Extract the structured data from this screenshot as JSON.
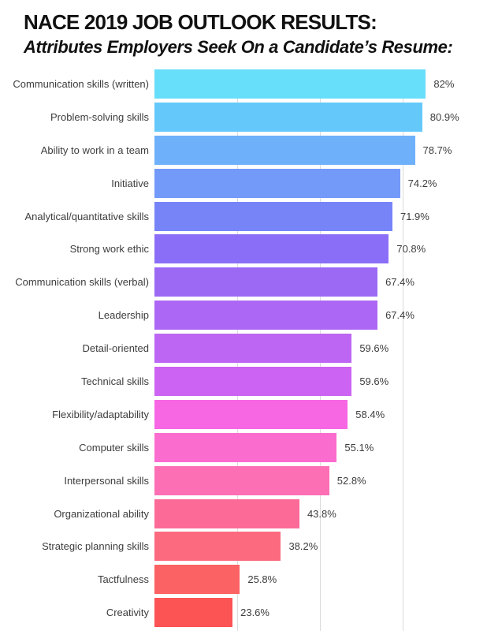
{
  "page": {
    "background": "#ffffff"
  },
  "header": {
    "title": "NACE 2019 JOB OUTLOOK RESULTS:",
    "subtitle": "Attributes Employers Seek On a Candidate’s Resume:"
  },
  "chart_data": {
    "type": "bar",
    "orientation": "horizontal",
    "title": "NACE 2019 JOB OUTLOOK RESULTS:",
    "subtitle": "Attributes Employers Seek On a Candidate’s Resume:",
    "categories": [
      "Communication skills (written)",
      "Problem-solving skills",
      "Ability to work in a team",
      "Initiative",
      "Analytical/quantitative skills",
      "Strong work ethic",
      "Communication skills (verbal)",
      "Leadership",
      "Detail-oriented",
      "Technical skills",
      "Flexibility/adaptability",
      "Computer skills",
      "Interpersonal skills",
      "Organizational ability",
      "Strategic planning skills",
      "Tactfulness",
      "Creativity"
    ],
    "values": [
      82,
      80.9,
      78.7,
      74.2,
      71.9,
      70.8,
      67.4,
      67.4,
      59.6,
      59.6,
      58.4,
      55.1,
      52.8,
      43.8,
      38.2,
      25.8,
      23.6
    ],
    "value_labels": [
      "82%",
      "80.9%",
      "78.7%",
      "74.2%",
      "71.9%",
      "70.8%",
      "67.4%",
      "67.4%",
      "59.6%",
      "59.6%",
      "58.4%",
      "55.1%",
      "52.8%",
      "43.8%",
      "38.2%",
      "25.8%",
      "23.6%"
    ],
    "bar_colors": [
      "#67DEFA",
      "#64C9FA",
      "#6FB0FA",
      "#7399F9",
      "#7684F8",
      "#8B6EF7",
      "#9C69F5",
      "#AC67F4",
      "#BD66F3",
      "#CD63F3",
      "#F767E4",
      "#FB6CCF",
      "#FC6FB5",
      "#FC6B97",
      "#FC6A80",
      "#FB6263",
      "#FC5354"
    ],
    "xlim": [
      0,
      100
    ],
    "gridlines_percent": [
      25,
      50,
      75
    ],
    "gridline_color": "#dcdcdc",
    "legend": "none",
    "label_color": "#3d3d3d",
    "title_color": "#111111",
    "background_color": "#ffffff"
  }
}
